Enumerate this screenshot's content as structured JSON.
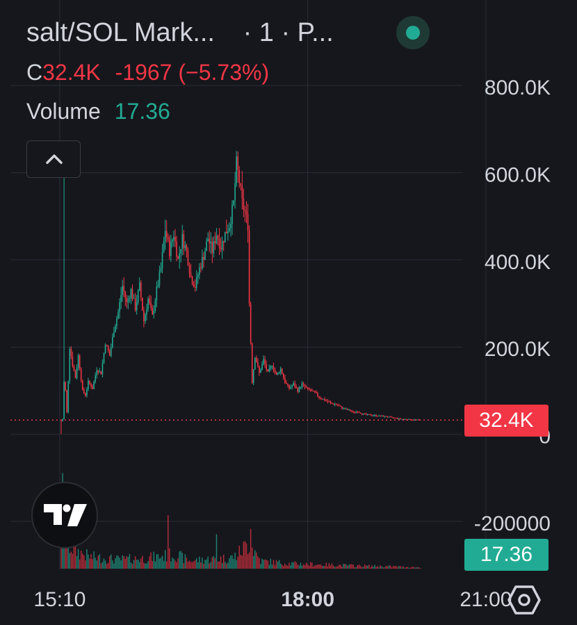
{
  "header": {
    "title": "salt/SOL Mark...",
    "meta": "· 1 · P...",
    "ohlc_label": "C",
    "close": "32.4K",
    "change": "-1967 (−5.73%)",
    "volume_label": "Volume",
    "volume_value": "17.36"
  },
  "price_tag": "32.4K",
  "volume_tag": "17.36",
  "colors": {
    "up": "#22ab94",
    "down": "#f23645",
    "background": "#16171c",
    "grid": "#2a2e39"
  },
  "icons": {
    "collapse": "chevron-up-icon",
    "logo": "tradingview-logo-icon",
    "settings": "hexagon-settings-icon",
    "status": "live-status-dot"
  },
  "chart_data": {
    "type": "candlestick",
    "x_tick_labels": [
      "15:10",
      "18:00",
      "21:00"
    ],
    "y_tick_labels": [
      "800.0K",
      "600.0K",
      "400.0K",
      "200.0K",
      "0",
      "-200000"
    ],
    "y_ticks": [
      800000,
      600000,
      400000,
      200000,
      0,
      -200000
    ],
    "ylim": [
      -270000,
      930000
    ],
    "x_minutes_range": [
      0,
      327
    ],
    "x_ticks_minutes": [
      -1,
      173,
      298
    ],
    "last_price": 32400,
    "last_volume": 17.36,
    "price_path": [
      {
        "t": 0,
        "p": 30000
      },
      {
        "t": 1,
        "p": 35000
      },
      {
        "t": 2,
        "p": 120000
      },
      {
        "t": 3,
        "p": 100000
      },
      {
        "t": 4,
        "p": 50000
      },
      {
        "t": 6,
        "p": 200000
      },
      {
        "t": 8,
        "p": 160000
      },
      {
        "t": 10,
        "p": 130000
      },
      {
        "t": 12,
        "p": 180000
      },
      {
        "t": 15,
        "p": 100000
      },
      {
        "t": 17,
        "p": 90000
      },
      {
        "t": 19,
        "p": 120000
      },
      {
        "t": 22,
        "p": 105000
      },
      {
        "t": 25,
        "p": 150000
      },
      {
        "t": 28,
        "p": 140000
      },
      {
        "t": 31,
        "p": 210000
      },
      {
        "t": 34,
        "p": 180000
      },
      {
        "t": 37,
        "p": 240000
      },
      {
        "t": 40,
        "p": 280000
      },
      {
        "t": 43,
        "p": 340000
      },
      {
        "t": 46,
        "p": 300000
      },
      {
        "t": 49,
        "p": 330000
      },
      {
        "t": 52,
        "p": 290000
      },
      {
        "t": 55,
        "p": 340000
      },
      {
        "t": 58,
        "p": 260000
      },
      {
        "t": 61,
        "p": 310000
      },
      {
        "t": 64,
        "p": 270000
      },
      {
        "t": 67,
        "p": 330000
      },
      {
        "t": 70,
        "p": 380000
      },
      {
        "t": 73,
        "p": 470000
      },
      {
        "t": 76,
        "p": 420000
      },
      {
        "t": 79,
        "p": 460000
      },
      {
        "t": 82,
        "p": 400000
      },
      {
        "t": 85,
        "p": 450000
      },
      {
        "t": 88,
        "p": 420000
      },
      {
        "t": 91,
        "p": 360000
      },
      {
        "t": 94,
        "p": 340000
      },
      {
        "t": 97,
        "p": 380000
      },
      {
        "t": 100,
        "p": 410000
      },
      {
        "t": 103,
        "p": 450000
      },
      {
        "t": 106,
        "p": 420000
      },
      {
        "t": 109,
        "p": 460000
      },
      {
        "t": 112,
        "p": 430000
      },
      {
        "t": 115,
        "p": 460000
      },
      {
        "t": 118,
        "p": 480000
      },
      {
        "t": 121,
        "p": 530000
      },
      {
        "t": 123,
        "p": 620000
      },
      {
        "t": 125,
        "p": 580000
      },
      {
        "t": 127,
        "p": 530000
      },
      {
        "t": 129,
        "p": 510000
      },
      {
        "t": 131,
        "p": 480000
      },
      {
        "t": 132,
        "p": 300000
      },
      {
        "t": 134,
        "p": 120000
      },
      {
        "t": 136,
        "p": 180000
      },
      {
        "t": 139,
        "p": 140000
      },
      {
        "t": 142,
        "p": 170000
      },
      {
        "t": 145,
        "p": 140000
      },
      {
        "t": 148,
        "p": 160000
      },
      {
        "t": 151,
        "p": 135000
      },
      {
        "t": 154,
        "p": 150000
      },
      {
        "t": 157,
        "p": 120000
      },
      {
        "t": 160,
        "p": 105000
      },
      {
        "t": 163,
        "p": 115000
      },
      {
        "t": 166,
        "p": 100000
      },
      {
        "t": 169,
        "p": 115000
      },
      {
        "t": 172,
        "p": 105000
      },
      {
        "t": 175,
        "p": 100000
      },
      {
        "t": 178,
        "p": 95000
      },
      {
        "t": 181,
        "p": 85000
      },
      {
        "t": 184,
        "p": 80000
      },
      {
        "t": 187,
        "p": 75000
      },
      {
        "t": 190,
        "p": 70000
      },
      {
        "t": 193,
        "p": 68000
      },
      {
        "t": 196,
        "p": 62000
      },
      {
        "t": 199,
        "p": 58000
      },
      {
        "t": 202,
        "p": 55000
      },
      {
        "t": 205,
        "p": 50000
      },
      {
        "t": 208,
        "p": 52000
      },
      {
        "t": 211,
        "p": 47000
      },
      {
        "t": 214,
        "p": 45000
      },
      {
        "t": 217,
        "p": 44000
      },
      {
        "t": 220,
        "p": 43000
      },
      {
        "t": 223,
        "p": 42000
      },
      {
        "t": 226,
        "p": 41000
      },
      {
        "t": 229,
        "p": 40000
      },
      {
        "t": 232,
        "p": 38000
      },
      {
        "t": 235,
        "p": 37000
      },
      {
        "t": 238,
        "p": 35000
      },
      {
        "t": 241,
        "p": 34500
      },
      {
        "t": 244,
        "p": 33800
      },
      {
        "t": 247,
        "p": 33200
      },
      {
        "t": 250,
        "p": 32800
      },
      {
        "t": 252,
        "p": 32400
      }
    ],
    "volume_path": [
      {
        "t": 0,
        "v": 120
      },
      {
        "t": 2,
        "v": 90
      },
      {
        "t": 4,
        "v": 40
      },
      {
        "t": 10,
        "v": 28
      },
      {
        "t": 20,
        "v": 18
      },
      {
        "t": 40,
        "v": 14
      },
      {
        "t": 60,
        "v": 16
      },
      {
        "t": 80,
        "v": 22
      },
      {
        "t": 90,
        "v": 12
      },
      {
        "t": 100,
        "v": 14
      },
      {
        "t": 118,
        "v": 16
      },
      {
        "t": 123,
        "v": 20
      },
      {
        "t": 132,
        "v": 40
      },
      {
        "t": 140,
        "v": 12
      },
      {
        "t": 160,
        "v": 8
      },
      {
        "t": 200,
        "v": 5
      },
      {
        "t": 240,
        "v": 3
      },
      {
        "t": 252,
        "v": 2
      }
    ],
    "volume_spikes": [
      {
        "t": 75,
        "v": 70
      },
      {
        "t": 109,
        "v": 45
      },
      {
        "t": 133,
        "v": 52
      }
    ]
  }
}
